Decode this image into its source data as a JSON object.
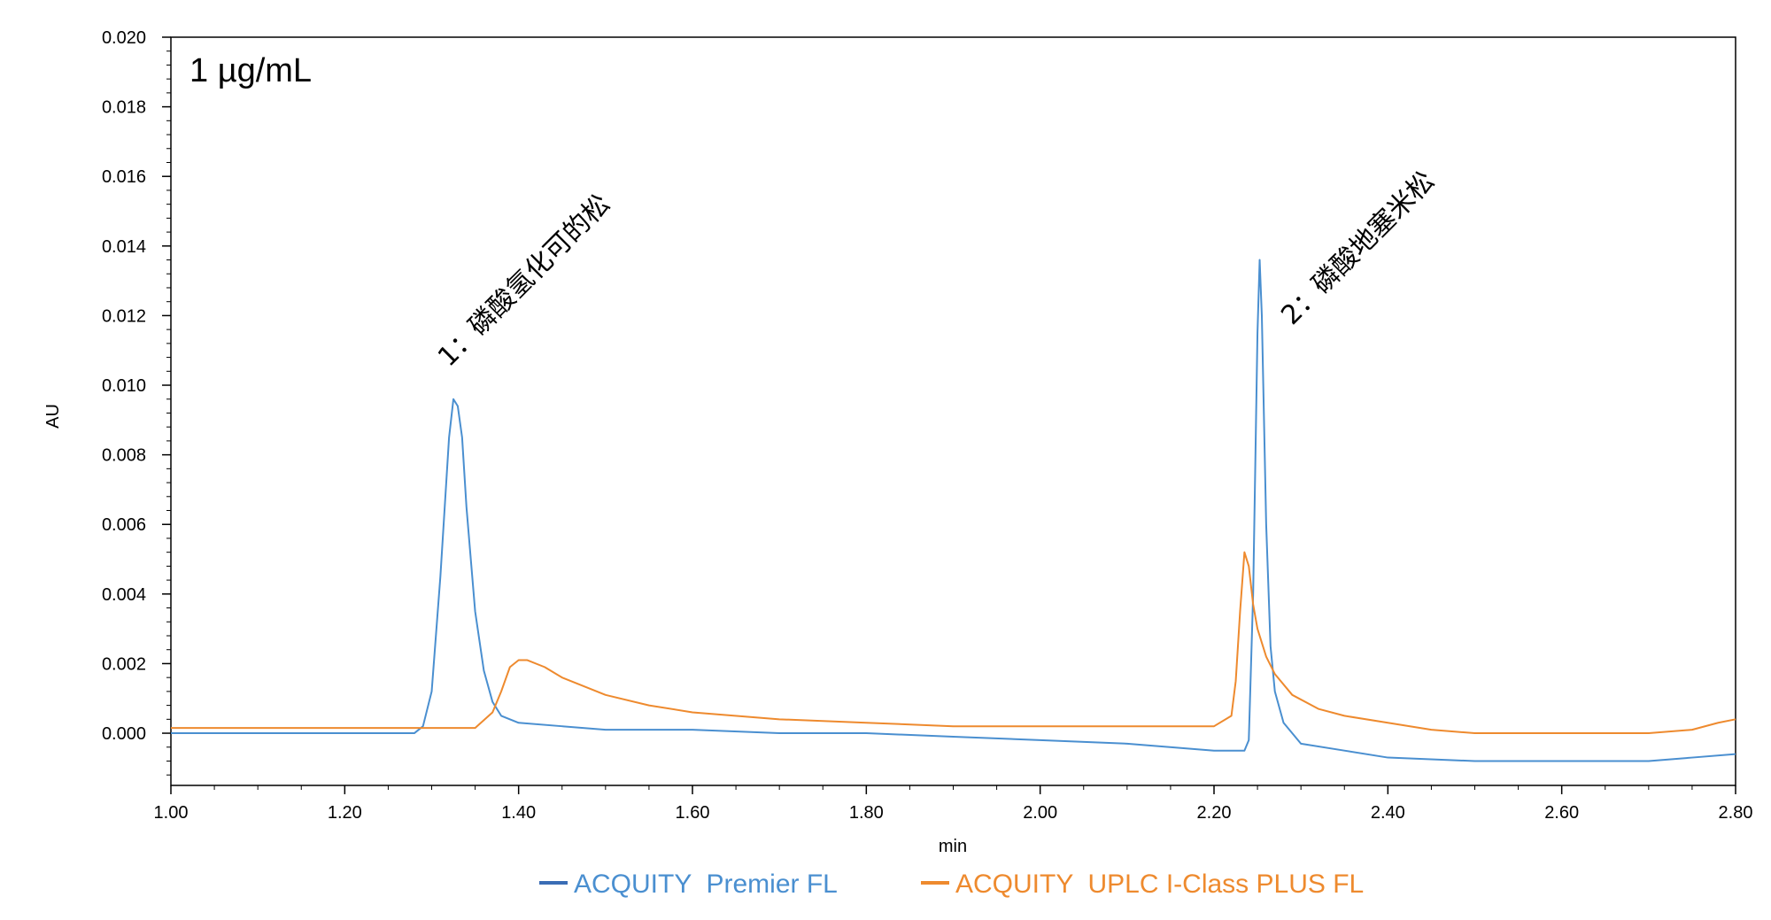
{
  "chart_data": {
    "type": "line",
    "title": "",
    "concentration_label": "1 µg/mL",
    "xlabel": "min",
    "ylabel": "AU",
    "xlim": [
      1.0,
      2.8
    ],
    "ylim": [
      -0.0015,
      0.02
    ],
    "x_ticks": [
      "1.00",
      "1.20",
      "1.40",
      "1.60",
      "1.80",
      "2.00",
      "2.20",
      "2.40",
      "2.60",
      "2.80"
    ],
    "y_ticks": [
      "0.000",
      "0.002",
      "0.004",
      "0.006",
      "0.008",
      "0.010",
      "0.012",
      "0.014",
      "0.016",
      "0.018",
      "0.020"
    ],
    "grid": false,
    "legend_position": "bottom-center",
    "annotations": [
      {
        "text": "1：磷酸氢化可的松",
        "x": 1.32,
        "y": 0.0105
      },
      {
        "text": "2：磷酸地塞米松",
        "x": 2.29,
        "y": 0.0117
      }
    ],
    "series": [
      {
        "name": "ACQUITY  Premier FL",
        "color": "#4a8fd0",
        "x": [
          1.0,
          1.1,
          1.2,
          1.28,
          1.29,
          1.3,
          1.31,
          1.32,
          1.325,
          1.33,
          1.335,
          1.34,
          1.35,
          1.36,
          1.37,
          1.38,
          1.4,
          1.45,
          1.5,
          1.6,
          1.7,
          1.8,
          1.9,
          2.0,
          2.1,
          2.2,
          2.235,
          2.24,
          2.245,
          2.25,
          2.2525,
          2.255,
          2.26,
          2.265,
          2.27,
          2.28,
          2.3,
          2.35,
          2.4,
          2.5,
          2.6,
          2.7,
          2.75,
          2.8
        ],
        "y": [
          0.0,
          0.0,
          0.0,
          0.0,
          0.0002,
          0.0012,
          0.0045,
          0.0085,
          0.0096,
          0.0094,
          0.0085,
          0.0065,
          0.0035,
          0.0018,
          0.0009,
          0.0005,
          0.0003,
          0.0002,
          0.0001,
          0.0001,
          0.0,
          0.0,
          -0.0001,
          -0.0002,
          -0.0003,
          -0.0005,
          -0.0005,
          -0.0002,
          0.004,
          0.0115,
          0.0136,
          0.012,
          0.006,
          0.0025,
          0.0012,
          0.0003,
          -0.0003,
          -0.0005,
          -0.0007,
          -0.0008,
          -0.0008,
          -0.0008,
          -0.0007,
          -0.0006
        ]
      },
      {
        "name": "ACQUITY  UPLC I-Class PLUS FL",
        "color": "#ee8a2e",
        "x": [
          1.0,
          1.1,
          1.2,
          1.3,
          1.35,
          1.37,
          1.38,
          1.39,
          1.4,
          1.41,
          1.43,
          1.45,
          1.5,
          1.55,
          1.6,
          1.7,
          1.8,
          1.9,
          2.0,
          2.1,
          2.2,
          2.22,
          2.225,
          2.23,
          2.235,
          2.24,
          2.245,
          2.25,
          2.26,
          2.27,
          2.29,
          2.32,
          2.35,
          2.4,
          2.45,
          2.5,
          2.55,
          2.6,
          2.65,
          2.7,
          2.75,
          2.78,
          2.8
        ],
        "y": [
          0.00015,
          0.00015,
          0.00015,
          0.00015,
          0.00015,
          0.0006,
          0.0012,
          0.0019,
          0.0021,
          0.0021,
          0.0019,
          0.0016,
          0.0011,
          0.0008,
          0.0006,
          0.0004,
          0.0003,
          0.0002,
          0.0002,
          0.0002,
          0.0002,
          0.0005,
          0.0015,
          0.0035,
          0.0052,
          0.0048,
          0.0037,
          0.003,
          0.0022,
          0.0017,
          0.0011,
          0.0007,
          0.0005,
          0.0003,
          0.0001,
          0.0,
          0.0,
          0.0,
          0.0,
          0.0,
          0.0001,
          0.0003,
          0.0004
        ]
      }
    ]
  }
}
